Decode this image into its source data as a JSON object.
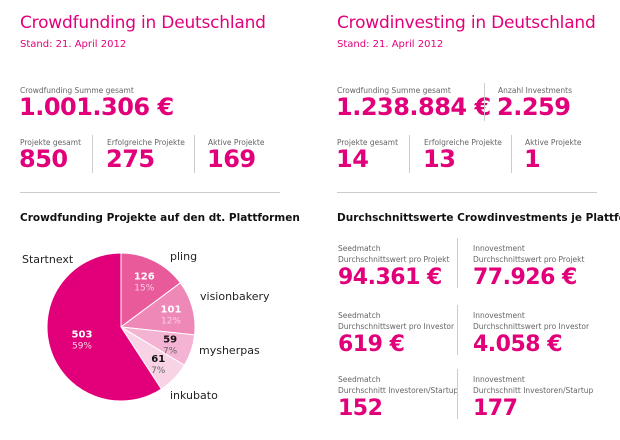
{
  "left": {
    "title": "Crowdfunding in Deutschland",
    "stand": "Stand: 21. April 2012",
    "total_label": "Crowdfunding Summe gesamt",
    "total_value": "1.001.306 €",
    "stats": [
      {
        "label": "Projekte gesamt",
        "value": "850"
      },
      {
        "label": "Erfolgreiche Projekte",
        "value": "275"
      },
      {
        "label": "Aktive Projekte",
        "value": "169"
      }
    ],
    "section_title": "Crowdfunding Projekte auf den dt. Plattformen"
  },
  "right": {
    "title": "Crowdinvesting in Deutschland",
    "stand": "Stand: 21. April 2012",
    "total_label": "Crowdfunding Summe gesamt",
    "total_value": "1.238.884 €",
    "investments_label": "Anzahl Investments",
    "investments_value": "2.259",
    "stats": [
      {
        "label": "Projekte gesamt",
        "value": "14"
      },
      {
        "label": "Erfolgreiche Projekte",
        "value": "13"
      },
      {
        "label": "Aktive Projekte",
        "value": "1"
      }
    ],
    "section_title": "Durchschnittswerte Crowdinvestments je Plattform",
    "averages": [
      {
        "platform": "Seedmatch",
        "metric": "Durchschnittswert pro Projekt",
        "value": "94.361 €"
      },
      {
        "platform": "Innovestment",
        "metric": "Durchschnittswert pro Projekt",
        "value": "77.926 €"
      },
      {
        "platform": "Seedmatch",
        "metric": "Durchschnittswert pro Investor",
        "value": "619 €"
      },
      {
        "platform": "Innovestment",
        "metric": "Durchschnittswert pro Investor",
        "value": "4.058 €"
      },
      {
        "platform": "Seedmatch",
        "metric": "Durchschnitt Investoren/Startup",
        "value": "152"
      },
      {
        "platform": "Innovestment",
        "metric": "Durchschnitt Investoren/Startup",
        "value": "177"
      }
    ]
  },
  "chart_data": {
    "type": "pie",
    "slices": [
      {
        "name": "pling",
        "value": 126,
        "percent": "15%",
        "color": "#e85a9a",
        "text_color": "#ffffff",
        "pct_color": "#fbd0e3"
      },
      {
        "name": "visionbakery",
        "value": 101,
        "percent": "12%",
        "color": "#ee88b7",
        "text_color": "#ffffff",
        "pct_color": "#fbd0e3"
      },
      {
        "name": "mysherpas",
        "value": 59,
        "percent": "7%",
        "color": "#f4b3d2",
        "text_color": "#111111",
        "pct_color": "#666666"
      },
      {
        "name": "inkubato",
        "value": 61,
        "percent": "7%",
        "color": "#f8d3e5",
        "text_color": "#111111",
        "pct_color": "#666666"
      },
      {
        "name": "Startnext",
        "value": 503,
        "percent": "59%",
        "color": "#e2007a",
        "text_color": "#ffffff",
        "pct_color": "#fbd0e3"
      }
    ],
    "start": "12 o'clock, clockwise"
  }
}
